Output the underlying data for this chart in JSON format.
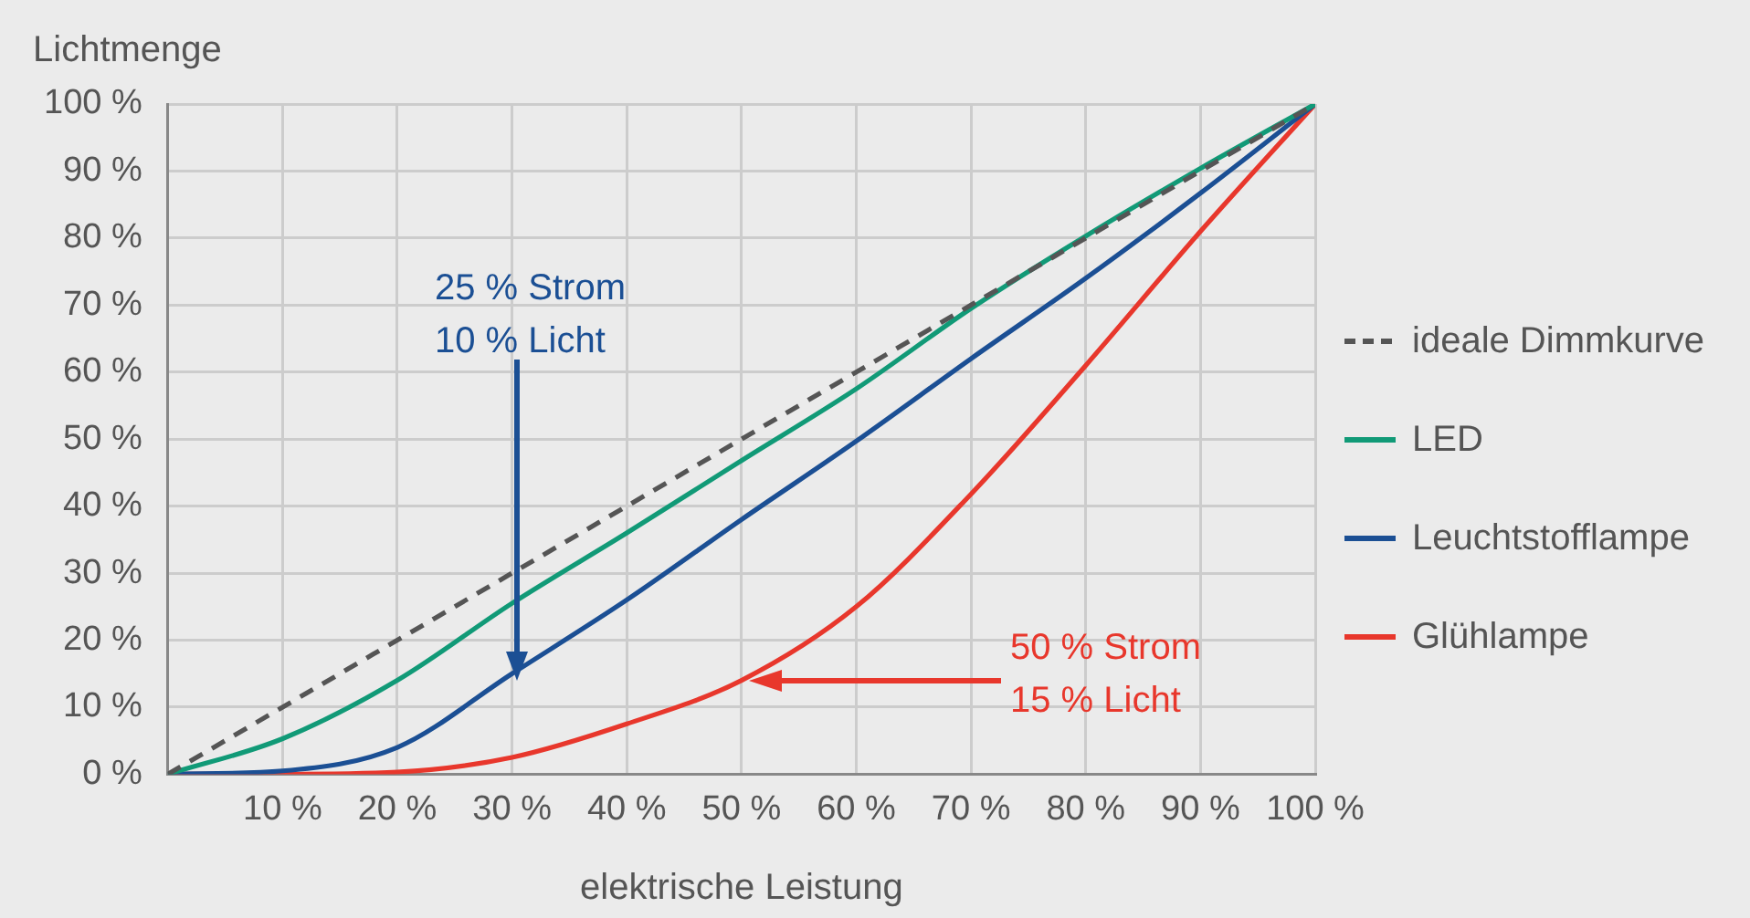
{
  "chart_data": {
    "type": "line",
    "xlabel": "elektrische Leistung",
    "ylabel": "Lichtmenge",
    "x": [
      0,
      10,
      20,
      30,
      40,
      50,
      60,
      70,
      80,
      90,
      100
    ],
    "series": [
      {
        "name": "ideale Dimmkurve",
        "color": "#555555",
        "line_style": "dashed",
        "values": [
          0,
          10,
          20,
          30,
          40,
          50,
          60,
          70,
          80,
          90,
          100
        ]
      },
      {
        "name": "LED",
        "color": "#119a77",
        "values": [
          0,
          5.3,
          14,
          25.5,
          36,
          46.8,
          57.5,
          69.5,
          80.3,
          90.4,
          100
        ]
      },
      {
        "name": "Leuchtstofflampe",
        "color": "#1b4f94",
        "values": [
          0,
          0.5,
          4,
          15,
          26,
          38,
          49.7,
          62,
          74,
          86.7,
          100
        ]
      },
      {
        "name": "Glühlampe",
        "color": "#e8372c",
        "values": [
          0,
          0,
          0.3,
          2.5,
          7.5,
          14,
          25,
          41.8,
          61,
          81,
          100
        ]
      }
    ],
    "xlim": [
      0,
      100
    ],
    "ylim": [
      0,
      100
    ],
    "xticks": [
      {
        "value": 0,
        "label": null
      },
      {
        "value": 10,
        "label": "10 %"
      },
      {
        "value": 20,
        "label": "20 %"
      },
      {
        "value": 30,
        "label": "30 %"
      },
      {
        "value": 40,
        "label": "40 %"
      },
      {
        "value": 50,
        "label": "50 %"
      },
      {
        "value": 60,
        "label": "60 %"
      },
      {
        "value": 70,
        "label": "70 %"
      },
      {
        "value": 80,
        "label": "80 %"
      },
      {
        "value": 90,
        "label": "90 %"
      },
      {
        "value": 100,
        "label": "100 %"
      }
    ],
    "yticks": [
      {
        "value": 0,
        "label": "0 %"
      },
      {
        "value": 10,
        "label": "10 %"
      },
      {
        "value": 20,
        "label": "20 %"
      },
      {
        "value": 30,
        "label": "30 %"
      },
      {
        "value": 40,
        "label": "40 %"
      },
      {
        "value": 50,
        "label": "50 %"
      },
      {
        "value": 60,
        "label": "60 %"
      },
      {
        "value": 70,
        "label": "70 %"
      },
      {
        "value": 80,
        "label": "80 %"
      },
      {
        "value": 90,
        "label": "90 %"
      },
      {
        "value": 100,
        "label": "100 %"
      }
    ],
    "annotations": [
      "25 % Strom\n10 % Licht",
      "50 % Strom\n15 % Licht"
    ],
    "grid": true,
    "legend": "right",
    "marker": "none"
  }
}
